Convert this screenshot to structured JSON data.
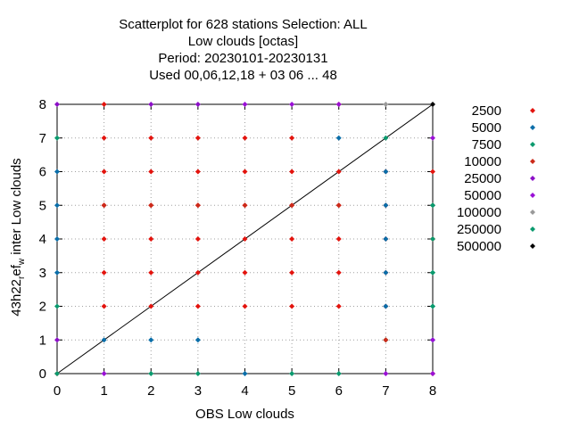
{
  "chart_data": {
    "type": "scatter",
    "title_lines": [
      "Scatterplot for  628 stations Selection: ALL",
      "Low clouds [octas]",
      "Period: 20230101-20230131",
      "Used  00,06,12,18  + 03 06 ... 48"
    ],
    "xlabel": "OBS Low clouds",
    "ylabel_parts": [
      "43h22",
      "r",
      "ef",
      "w",
      "inter Low clouds"
    ],
    "xlim": [
      0,
      8
    ],
    "ylim": [
      0,
      8
    ],
    "x_ticks": [
      "0",
      "1",
      "2",
      "3",
      "4",
      "5",
      "6",
      "7",
      "8"
    ],
    "y_ticks": [
      "0",
      "1",
      "2",
      "3",
      "4",
      "5",
      "6",
      "7",
      "8"
    ],
    "grid": true,
    "diagonal": true,
    "legend_placement": "right",
    "series": [
      {
        "name": "2500",
        "color": "#e3140e",
        "points": [
          [
            0,
            0
          ],
          [
            1,
            8
          ],
          [
            1,
            7
          ],
          [
            1,
            6
          ],
          [
            1,
            5
          ],
          [
            1,
            4
          ],
          [
            1,
            3
          ],
          [
            1,
            2
          ],
          [
            2,
            7
          ],
          [
            2,
            6
          ],
          [
            2,
            5
          ],
          [
            2,
            4
          ],
          [
            2,
            3
          ],
          [
            2,
            2
          ],
          [
            3,
            7
          ],
          [
            3,
            6
          ],
          [
            3,
            5
          ],
          [
            3,
            4
          ],
          [
            3,
            3
          ],
          [
            3,
            2
          ],
          [
            4,
            7
          ],
          [
            4,
            6
          ],
          [
            4,
            5
          ],
          [
            4,
            4
          ],
          [
            4,
            3
          ],
          [
            4,
            2
          ],
          [
            5,
            7
          ],
          [
            5,
            6
          ],
          [
            5,
            5
          ],
          [
            5,
            4
          ],
          [
            5,
            3
          ],
          [
            5,
            2
          ],
          [
            6,
            8
          ],
          [
            6,
            6
          ],
          [
            6,
            5
          ],
          [
            6,
            4
          ],
          [
            6,
            3
          ],
          [
            6,
            2
          ],
          [
            7,
            6
          ],
          [
            7,
            5
          ],
          [
            7,
            4
          ],
          [
            7,
            3
          ],
          [
            7,
            2
          ],
          [
            8,
            6
          ],
          [
            8,
            5
          ],
          [
            8,
            4
          ]
        ]
      },
      {
        "name": "5000",
        "color": "#0a6ea9",
        "points": [
          [
            0,
            6
          ],
          [
            0,
            5
          ],
          [
            0,
            4
          ],
          [
            0,
            3
          ],
          [
            1,
            1
          ],
          [
            2,
            1
          ],
          [
            3,
            1
          ],
          [
            4,
            0
          ],
          [
            6,
            7
          ],
          [
            7,
            6
          ],
          [
            7,
            5
          ],
          [
            7,
            4
          ],
          [
            7,
            3
          ],
          [
            7,
            2
          ],
          [
            8,
            1
          ]
        ]
      },
      {
        "name": "7500",
        "color": "#0a9a6e",
        "points": [
          [
            0,
            7
          ],
          [
            0,
            2
          ],
          [
            0,
            0
          ],
          [
            2,
            0
          ],
          [
            3,
            0
          ],
          [
            5,
            0
          ],
          [
            6,
            0
          ],
          [
            7,
            7
          ],
          [
            7,
            1
          ],
          [
            8,
            5
          ],
          [
            8,
            4
          ],
          [
            8,
            3
          ],
          [
            8,
            2
          ]
        ]
      },
      {
        "name": "10000",
        "color": "#cc2a1a",
        "points": [
          [
            1,
            5
          ],
          [
            2,
            5
          ],
          [
            3,
            5
          ],
          [
            4,
            5
          ],
          [
            5,
            5
          ],
          [
            6,
            5
          ],
          [
            7,
            1
          ],
          [
            8,
            0
          ]
        ]
      },
      {
        "name": "25000",
        "color": "#8c0fc8",
        "points": [
          [
            0,
            8
          ],
          [
            2,
            8
          ],
          [
            3,
            8
          ],
          [
            0,
            1
          ]
        ]
      },
      {
        "name": "50000",
        "color": "#9a10d6",
        "points": [
          [
            4,
            8
          ],
          [
            5,
            8
          ],
          [
            6,
            8
          ],
          [
            8,
            7
          ],
          [
            8,
            1
          ],
          [
            8,
            0
          ],
          [
            1,
            0
          ],
          [
            7,
            0
          ]
        ]
      },
      {
        "name": "100000",
        "color": "#999999",
        "points": [
          [
            7,
            8
          ]
        ]
      },
      {
        "name": "250000",
        "color": "#0a9a6e",
        "points": [
          [
            8,
            5
          ],
          [
            8,
            3
          ],
          [
            8,
            2
          ]
        ]
      },
      {
        "name": "500000",
        "color": "#000000",
        "points": [
          [
            8,
            8
          ]
        ]
      }
    ]
  }
}
